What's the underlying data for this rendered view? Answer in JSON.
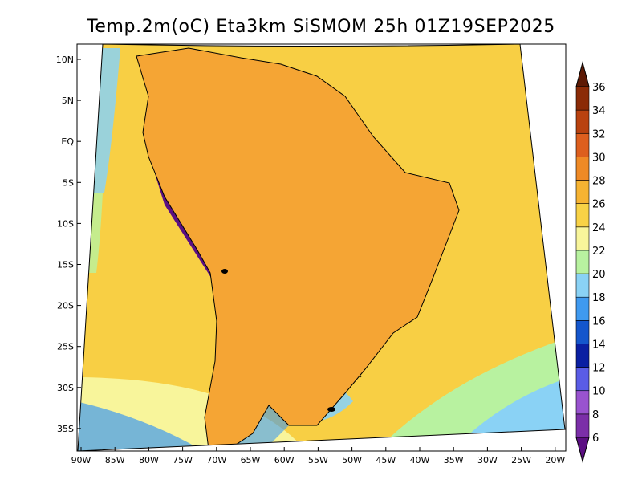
{
  "title": "Temp.2m(oC) Eta3km SiSMOM 25h 01Z19SEP2025",
  "map": {
    "lon_range": [
      -90,
      -20
    ],
    "lat_range": [
      -38,
      12
    ],
    "lon_ticks": [
      "90W",
      "85W",
      "80W",
      "75W",
      "70W",
      "65W",
      "60W",
      "55W",
      "50W",
      "45W",
      "40W",
      "35W",
      "30W",
      "25W",
      "20W"
    ],
    "lat_ticks": [
      "10N",
      "5N",
      "EQ",
      "5S",
      "10S",
      "15S",
      "20S",
      "25S",
      "30S",
      "35S"
    ],
    "ocean_color": "#f8cf44",
    "land_color": "#f5a534"
  },
  "colorbar": {
    "levels": [
      "6",
      "8",
      "10",
      "12",
      "14",
      "16",
      "18",
      "20",
      "22",
      "24",
      "26",
      "28",
      "30",
      "32",
      "34",
      "36"
    ],
    "colors": [
      "#5b0f82",
      "#7b2fa8",
      "#9953cf",
      "#5a5ce6",
      "#0a1fa2",
      "#1456cc",
      "#3f9af0",
      "#8ad2f5",
      "#b8f2a0",
      "#f8f59b",
      "#f8d246",
      "#f6b332",
      "#ef8a26",
      "#dd5f1e",
      "#b9420f",
      "#8b2b07",
      "#5d1a05"
    ]
  }
}
